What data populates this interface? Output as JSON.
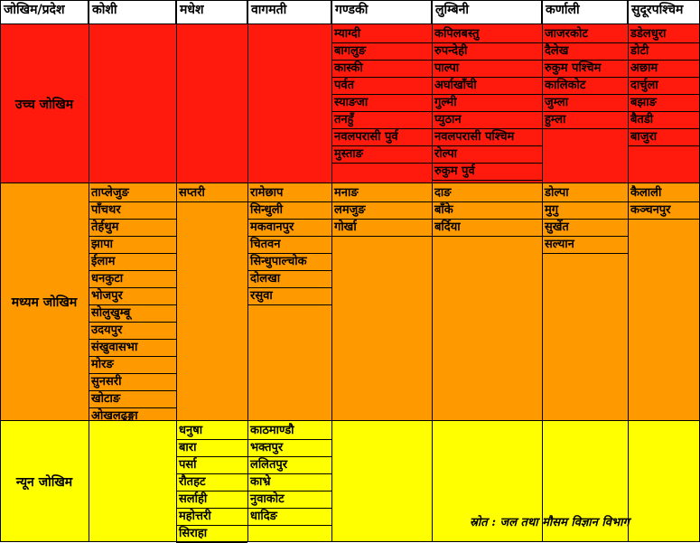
{
  "header": {
    "corner": "जोखिम/प्रदेश",
    "provinces": [
      "कोशी",
      "मधेश",
      "वागमती",
      "गण्डकी",
      "लुम्बिनी",
      "कर्णाली",
      "सुदूरपश्चिम"
    ]
  },
  "tiers": [
    {
      "name": "उच्च जोखिम",
      "color": "#ff1a0d",
      "districts": [
        [],
        [],
        [],
        [
          "म्याग्दी",
          "बागलुङ",
          "कास्की",
          "पर्वत",
          "स्याङजा",
          "तनहुँ",
          "नवलपरासी पुर्व",
          "मुस्ताङ"
        ],
        [
          "कपिलबस्तु",
          "रुपन्देही",
          "पाल्पा",
          "अर्घाखाँची",
          "गुल्मी",
          "प्युठान",
          "नवलपरासी पश्चिम",
          "रोल्पा",
          "रुकुम पुर्व"
        ],
        [
          "जाजरकोट",
          "दैलेख",
          "रुकुम पश्चिम",
          "कालिकोट",
          "जुम्ला",
          "हुम्ला"
        ],
        [
          "डडेलधुरा",
          "डोटी",
          "अछाम",
          "दार्चुला",
          "बझाङ",
          "बैतडी",
          "बाजुरा"
        ]
      ]
    },
    {
      "name": "मध्यम जोखिम",
      "color": "#ff9900",
      "districts": [
        [
          "ताप्लेजुङ",
          "पाँचथर",
          "तेर्हथुम",
          "झापा",
          "ईलाम",
          "धनकुटा",
          "भोजपुर",
          "सोलुखुम्बू",
          "उदयपुर",
          "संखुवासभा",
          "मोरङ",
          "सुनसरी",
          "खोटाङ",
          "ओखलढुङ्गा"
        ],
        [
          "सप्तरी"
        ],
        [
          "रामेछाप",
          "सिन्धुली",
          "मकवानपुर",
          "चितवन",
          "सिन्धुपाल्चोक",
          "दोलखा",
          "रसुवा"
        ],
        [
          "मनाङ",
          "लमजुङ",
          "गोर्खा"
        ],
        [
          "दाङ",
          "बाँके",
          "बर्दिया"
        ],
        [
          "डोल्पा",
          "मुगु",
          "सुर्खेत",
          "सल्यान"
        ],
        [
          "कैलाली",
          "कञ्चनपुर"
        ]
      ]
    },
    {
      "name": "न्यून जोखिम",
      "color": "#ffff00",
      "districts": [
        [],
        [
          "धनुषा",
          "बारा",
          "पर्सा",
          "रौतहट",
          "सर्लाही",
          "महोत्तरी",
          "सिराहा"
        ],
        [
          "काठमाण्डौ",
          "भक्तपुर",
          "ललितपुर",
          "काभ्रे",
          "नुवाकोट",
          "धादिङ"
        ],
        [],
        [],
        [],
        []
      ]
    }
  ],
  "source": "स्रोत : जल तथा मौसम विज्ञान विभाग"
}
